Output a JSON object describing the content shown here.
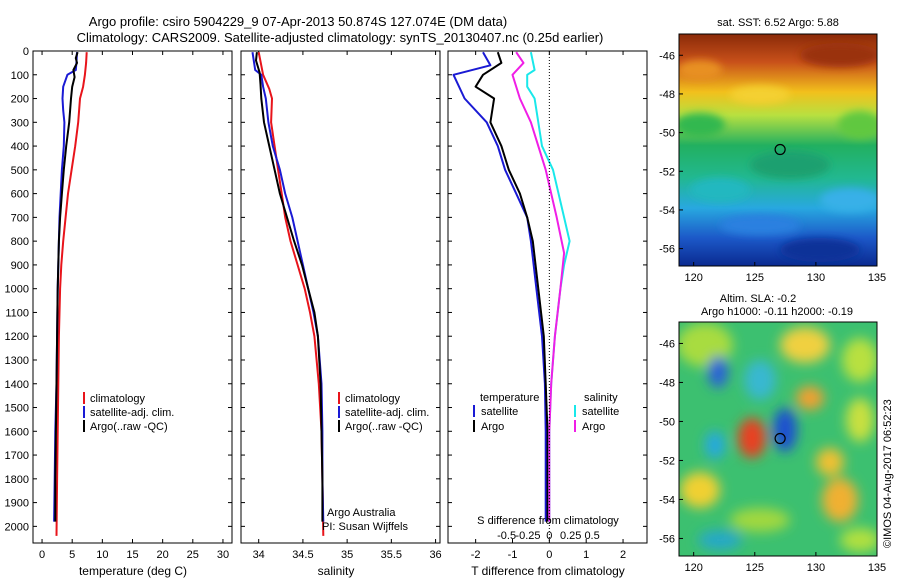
{
  "header": {
    "title_line1": "Argo profile: csiro 5904229_9 07-Apr-2013 50.874S 127.074E (DM data)",
    "title_line2": "Climatology: CARS2009. Satellite-adjusted climatology: synTS_20130407.nc (0.25d earlier)"
  },
  "colors": {
    "climatology": "#e8141b",
    "satellite": "#1a1ad4",
    "argo": "#000000",
    "sal_satellite": "#19e8ea",
    "sal_argo": "#f01ee6"
  },
  "chart_data": [
    {
      "type": "line",
      "id": "temperature",
      "xlabel": "temperature (deg C)",
      "xticks": [
        0,
        5,
        10,
        15,
        20,
        25,
        30
      ],
      "xlim": [
        -1.5,
        31.5
      ],
      "ylim": [
        2070,
        0
      ],
      "yticks": [
        0,
        100,
        200,
        300,
        400,
        500,
        600,
        700,
        800,
        900,
        1000,
        1100,
        1200,
        1300,
        1400,
        1500,
        1600,
        1700,
        1800,
        1900,
        2000
      ],
      "legend": [
        "climatology",
        "satellite-adj. clim.",
        "Argo(..raw -QC)"
      ],
      "series": [
        {
          "name": "climatology",
          "color": "#e8141b",
          "points": [
            [
              7.4,
              5
            ],
            [
              7.3,
              50
            ],
            [
              7.1,
              100
            ],
            [
              6.8,
              150
            ],
            [
              6.3,
              200
            ],
            [
              6.0,
              300
            ],
            [
              5.5,
              400
            ],
            [
              4.9,
              500
            ],
            [
              4.3,
              600
            ],
            [
              3.9,
              700
            ],
            [
              3.5,
              800
            ],
            [
              3.2,
              900
            ],
            [
              3.0,
              1000
            ],
            [
              2.8,
              1200
            ],
            [
              2.7,
              1400
            ],
            [
              2.6,
              1600
            ],
            [
              2.5,
              1800
            ],
            [
              2.4,
              2040
            ]
          ]
        },
        {
          "name": "satellite-adj. clim.",
          "color": "#1a1ad4",
          "points": [
            [
              5.8,
              5
            ],
            [
              5.7,
              50
            ],
            [
              5.6,
              80
            ],
            [
              4.2,
              100
            ],
            [
              3.5,
              150
            ],
            [
              3.4,
              200
            ],
            [
              3.5,
              250
            ],
            [
              3.7,
              300
            ],
            [
              3.6,
              400
            ],
            [
              3.3,
              500
            ],
            [
              3.1,
              600
            ],
            [
              2.9,
              700
            ],
            [
              2.8,
              800
            ],
            [
              2.6,
              1000
            ],
            [
              2.5,
              1200
            ],
            [
              2.4,
              1400
            ],
            [
              2.2,
              1600
            ],
            [
              2.1,
              1800
            ],
            [
              2.0,
              1980
            ]
          ]
        },
        {
          "name": "Argo(..raw -QC)",
          "color": "#000000",
          "points": [
            [
              5.9,
              5
            ],
            [
              5.6,
              30
            ],
            [
              5.8,
              50
            ],
            [
              5.2,
              80
            ],
            [
              5.4,
              110
            ],
            [
              5.0,
              150
            ],
            [
              4.8,
              200
            ],
            [
              4.5,
              300
            ],
            [
              4.0,
              400
            ],
            [
              3.6,
              500
            ],
            [
              3.3,
              600
            ],
            [
              3.0,
              700
            ],
            [
              2.8,
              800
            ],
            [
              2.6,
              1000
            ],
            [
              2.5,
              1200
            ],
            [
              2.4,
              1400
            ],
            [
              2.3,
              1600
            ],
            [
              2.2,
              1800
            ],
            [
              2.2,
              1980
            ]
          ]
        }
      ]
    },
    {
      "type": "line",
      "id": "salinity",
      "xlabel": "salinity",
      "xticks": [
        34,
        34.5,
        35,
        35.5,
        36
      ],
      "xlim": [
        33.8,
        36.05
      ],
      "ylim": [
        2070,
        0
      ],
      "legend": [
        "climatology",
        "satellite-adj. clim.",
        "Argo(..raw -QC)"
      ],
      "annotations": [
        "Argo Australia",
        "PI: Susan Wijffels"
      ],
      "series": [
        {
          "name": "climatology",
          "color": "#e8141b",
          "points": [
            [
              34.0,
              5
            ],
            [
              34.05,
              100
            ],
            [
              34.12,
              160
            ],
            [
              34.15,
              200
            ],
            [
              34.14,
              300
            ],
            [
              34.18,
              400
            ],
            [
              34.22,
              500
            ],
            [
              34.26,
              600
            ],
            [
              34.3,
              700
            ],
            [
              34.36,
              800
            ],
            [
              34.44,
              900
            ],
            [
              34.52,
              1000
            ],
            [
              34.58,
              1100
            ],
            [
              34.63,
              1200
            ],
            [
              34.68,
              1400
            ],
            [
              34.71,
              1600
            ],
            [
              34.72,
              1800
            ],
            [
              34.73,
              2040
            ]
          ]
        },
        {
          "name": "satellite-adj. clim.",
          "color": "#1a1ad4",
          "points": [
            [
              33.93,
              5
            ],
            [
              33.96,
              80
            ],
            [
              34.03,
              100
            ],
            [
              34.05,
              150
            ],
            [
              34.08,
              200
            ],
            [
              34.11,
              300
            ],
            [
              34.16,
              400
            ],
            [
              34.24,
              500
            ],
            [
              34.3,
              600
            ],
            [
              34.38,
              700
            ],
            [
              34.44,
              800
            ],
            [
              34.5,
              900
            ],
            [
              34.56,
              1000
            ],
            [
              34.62,
              1100
            ],
            [
              34.67,
              1200
            ],
            [
              34.71,
              1400
            ],
            [
              34.72,
              1600
            ],
            [
              34.72,
              1800
            ],
            [
              34.73,
              1980
            ]
          ]
        },
        {
          "name": "Argo(..raw -QC)",
          "color": "#000000",
          "points": [
            [
              33.98,
              5
            ],
            [
              33.97,
              40
            ],
            [
              34.01,
              90
            ],
            [
              34.02,
              140
            ],
            [
              34.03,
              200
            ],
            [
              34.06,
              300
            ],
            [
              34.12,
              400
            ],
            [
              34.18,
              500
            ],
            [
              34.24,
              600
            ],
            [
              34.32,
              700
            ],
            [
              34.4,
              800
            ],
            [
              34.49,
              900
            ],
            [
              34.56,
              1000
            ],
            [
              34.63,
              1100
            ],
            [
              34.67,
              1200
            ],
            [
              34.7,
              1400
            ],
            [
              34.71,
              1600
            ],
            [
              34.72,
              1800
            ],
            [
              34.72,
              1980
            ]
          ]
        }
      ]
    },
    {
      "type": "line",
      "id": "difference",
      "xlabel": "T difference from climatology",
      "xlabel_top": "S difference from climatology",
      "xticks_T": [
        -2,
        -1,
        0,
        1,
        2
      ],
      "xticks_S": [
        -0.5,
        -0.25,
        0,
        0.25,
        0.5
      ],
      "xlim": [
        -2.75,
        2.65
      ],
      "ylim": [
        2070,
        0
      ],
      "legend_titles": [
        "temperature",
        "salinity"
      ],
      "legend": [
        "satellite",
        "Argo",
        "satellite",
        "Argo"
      ],
      "series": [
        {
          "name": "satellite",
          "color": "#1a1ad4",
          "points": [
            [
              -1.8,
              5
            ],
            [
              -1.6,
              60
            ],
            [
              -2.6,
              100
            ],
            [
              -2.3,
              200
            ],
            [
              -1.7,
              300
            ],
            [
              -1.4,
              400
            ],
            [
              -1.2,
              500
            ],
            [
              -0.9,
              600
            ],
            [
              -0.6,
              700
            ],
            [
              -0.5,
              800
            ],
            [
              -0.35,
              1000
            ],
            [
              -0.2,
              1200
            ],
            [
              -0.12,
              1400
            ],
            [
              -0.1,
              1600
            ],
            [
              -0.1,
              1800
            ],
            [
              -0.1,
              1980
            ]
          ]
        },
        {
          "name": "Argo",
          "color": "#000000",
          "points": [
            [
              -1.4,
              5
            ],
            [
              -1.3,
              50
            ],
            [
              -1.8,
              100
            ],
            [
              -2.0,
              150
            ],
            [
              -1.5,
              200
            ],
            [
              -1.6,
              300
            ],
            [
              -1.3,
              400
            ],
            [
              -1.1,
              500
            ],
            [
              -0.8,
              600
            ],
            [
              -0.6,
              700
            ],
            [
              -0.45,
              800
            ],
            [
              -0.3,
              1000
            ],
            [
              -0.15,
              1200
            ],
            [
              -0.1,
              1400
            ],
            [
              -0.05,
              1600
            ],
            [
              -0.05,
              1800
            ],
            [
              -0.05,
              1980
            ]
          ]
        },
        {
          "name": "satellite",
          "color": "#19e8ea",
          "points": [
            [
              -0.5,
              5
            ],
            [
              -0.4,
              80
            ],
            [
              -0.6,
              100
            ],
            [
              -0.6,
              150
            ],
            [
              -0.4,
              200
            ],
            [
              -0.2,
              400
            ],
            [
              0.1,
              500
            ],
            [
              0.4,
              700
            ],
            [
              0.55,
              800
            ],
            [
              0.4,
              900
            ],
            [
              0.3,
              1000
            ],
            [
              0.15,
              1200
            ],
            [
              0.05,
              1400
            ],
            [
              0.0,
              1600
            ],
            [
              0.0,
              1800
            ],
            [
              0.0,
              1980
            ]
          ]
        },
        {
          "name": "Argo",
          "color": "#f01ee6",
          "points": [
            [
              -0.9,
              5
            ],
            [
              -0.7,
              50
            ],
            [
              -1.0,
              100
            ],
            [
              -0.8,
              200
            ],
            [
              -0.5,
              300
            ],
            [
              -0.3,
              400
            ],
            [
              -0.1,
              500
            ],
            [
              0.2,
              700
            ],
            [
              0.4,
              850
            ],
            [
              0.3,
              1000
            ],
            [
              0.15,
              1200
            ],
            [
              0.05,
              1400
            ],
            [
              0.0,
              1600
            ],
            [
              0.0,
              1800
            ],
            [
              0.0,
              1980
            ]
          ]
        }
      ]
    },
    {
      "type": "heatmap",
      "id": "sst-map",
      "title": "sat. SST: 6.52 Argo: 5.88",
      "xticks": [
        120,
        125,
        130,
        135
      ],
      "yticks": [
        -46,
        -48,
        -50,
        -52,
        -54,
        -56
      ],
      "xlim": [
        118.8,
        135
      ],
      "ylim": [
        -56.9,
        -44.9
      ],
      "marker": [
        127.074,
        -50.874
      ]
    },
    {
      "type": "heatmap",
      "id": "sla-map",
      "title_line1": "Altim. SLA: -0.2",
      "title_line2": "Argo h1000: -0.11 h2000: -0.19",
      "xticks": [
        120,
        125,
        130,
        135
      ],
      "yticks": [
        -46,
        -48,
        -50,
        -52,
        -54,
        -56
      ],
      "xlim": [
        118.8,
        135
      ],
      "ylim": [
        -56.9,
        -44.9
      ],
      "marker": [
        127.074,
        -50.874
      ]
    }
  ],
  "footer": {
    "credit": "©IMOS 04-Aug-2017 06:52:23"
  }
}
